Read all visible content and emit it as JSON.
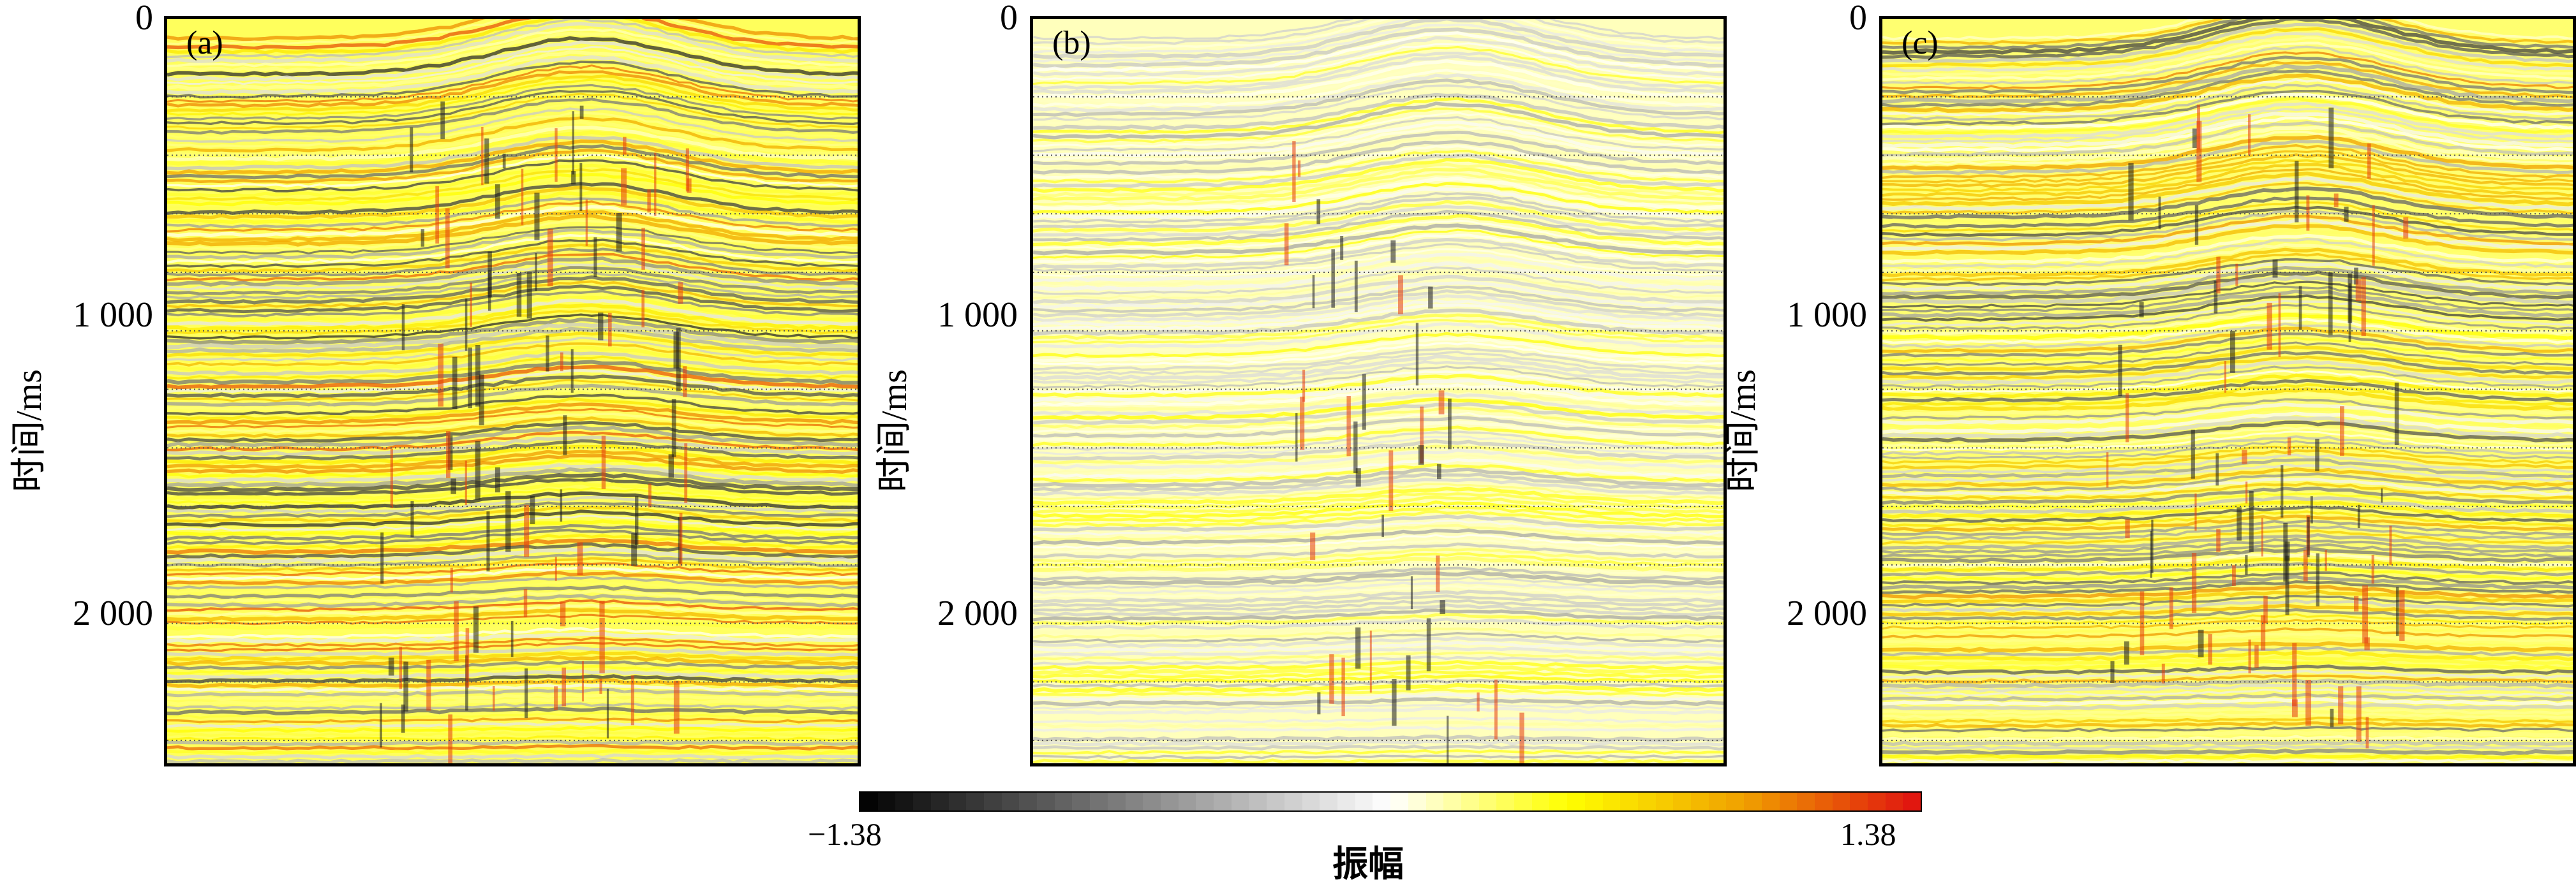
{
  "chart_data": [
    {
      "type": "heatmap",
      "panel_label": "(a)",
      "ylabel": "时间/ms",
      "yticks": [
        "0",
        "1 000",
        "2 000"
      ],
      "ytick_values": [
        0,
        1000,
        2000
      ],
      "ylim": [
        0,
        2500
      ],
      "y_inverted": true,
      "grid": true,
      "grid_y_values": [
        200,
        400,
        600,
        800,
        1000,
        1200,
        1400,
        1600,
        1800,
        2000,
        2200,
        2400
      ],
      "description_values": {
        "strong_zone_x_fraction": [
          0.3,
          0.75
        ],
        "energy_level": 0.85
      }
    },
    {
      "type": "heatmap",
      "panel_label": "(b)",
      "ylabel": "时间/ms",
      "yticks": [
        "0",
        "1 000",
        "2 000"
      ],
      "ytick_values": [
        0,
        1000,
        2000
      ],
      "ylim": [
        0,
        2500
      ],
      "y_inverted": true,
      "grid": true,
      "grid_y_values": [
        200,
        400,
        600,
        800,
        1000,
        1200,
        1400,
        1600,
        1800,
        2000,
        2200,
        2400
      ],
      "description_values": {
        "strong_zone_x_fraction": [
          0.35,
          0.7
        ],
        "energy_level": 0.35
      }
    },
    {
      "type": "heatmap",
      "panel_label": "(c)",
      "ylabel": "时间/ms",
      "yticks": [
        "0",
        "1 000",
        "2 000"
      ],
      "ytick_values": [
        0,
        1000,
        2000
      ],
      "ylim": [
        0,
        2500
      ],
      "y_inverted": true,
      "grid": true,
      "grid_y_values": [
        200,
        400,
        600,
        800,
        1000,
        1200,
        1400,
        1600,
        1800,
        2000,
        2200,
        2400
      ],
      "description_values": {
        "strong_zone_x_fraction": [
          0.32,
          0.75
        ],
        "energy_level": 0.75
      }
    }
  ],
  "colorbar": {
    "title": "振幅",
    "min_label": "−1.38",
    "max_label": "1.38",
    "min": -1.38,
    "max": 1.38,
    "colors": [
      "#000000",
      "#ffffff",
      "#ffff00",
      "#f0a000",
      "#e01010"
    ]
  }
}
